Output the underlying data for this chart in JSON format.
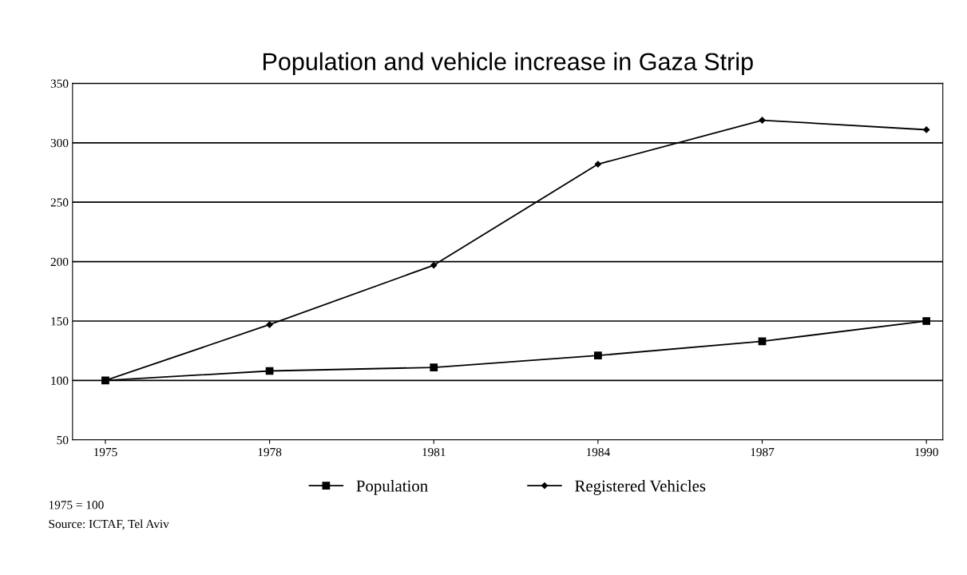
{
  "chart_data": {
    "type": "line",
    "title": "Population and vehicle increase in Gaza Strip",
    "categories": [
      "1975",
      "1978",
      "1981",
      "1984",
      "1987",
      "1990"
    ],
    "series": [
      {
        "name": "Population",
        "color": "#000000",
        "marker": "square",
        "values": [
          100,
          108,
          111,
          121,
          133,
          150
        ]
      },
      {
        "name": "Registered Vehicles",
        "color": "#000000",
        "marker": "diamond",
        "values": [
          100,
          147,
          197,
          282,
          319,
          311
        ]
      }
    ],
    "ylim": [
      50,
      350
    ],
    "yticks": [
      50,
      100,
      150,
      200,
      250,
      300,
      350
    ],
    "grid": "y",
    "legend": "bottom",
    "line_style": "solid",
    "annotations": [
      "1975 = 100",
      "Source: ICTAF, Tel Aviv"
    ]
  }
}
